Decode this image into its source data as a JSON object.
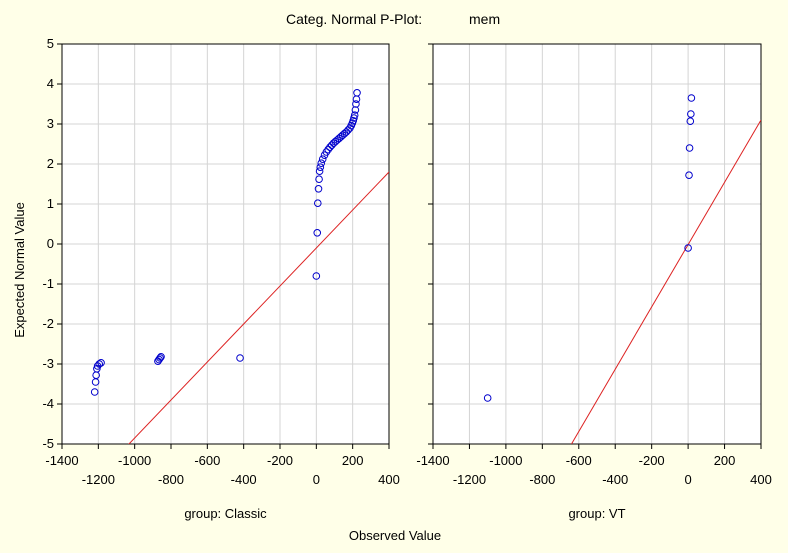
{
  "chart_data": {
    "type": "scatter",
    "title": "Categ. Normal P-Plot:",
    "variable": "mem",
    "xlabel": "Observed Value",
    "ylabel": "Expected Normal Value",
    "xlim": [
      -1400,
      400
    ],
    "ylim": [
      -5,
      5
    ],
    "x_tick_labels_upper": [
      "-1400",
      "-1000",
      "-600",
      "-200",
      "200"
    ],
    "x_tick_labels_lower": [
      "-1200",
      "-800",
      "-400",
      "0",
      "400"
    ],
    "y_tick_labels": [
      "5",
      "4",
      "3",
      "2",
      "1",
      "0",
      "-1",
      "-2",
      "-3",
      "-4",
      "-5"
    ],
    "grid": true,
    "point_color": "#0000cc",
    "line_color": "#dd2222",
    "panels": [
      {
        "name": "group: Classic",
        "line": [
          [
            -1200,
            -5.8
          ],
          [
            400,
            1.8
          ]
        ],
        "points": [
          [
            -1220,
            -3.7
          ],
          [
            -1215,
            -3.45
          ],
          [
            -1212,
            -3.28
          ],
          [
            -1208,
            -3.12
          ],
          [
            -1204,
            -3.05
          ],
          [
            -1195,
            -3.0
          ],
          [
            -1185,
            -2.97
          ],
          [
            -872,
            -2.93
          ],
          [
            -866,
            -2.89
          ],
          [
            -860,
            -2.85
          ],
          [
            -855,
            -2.82
          ],
          [
            -420,
            -2.85
          ],
          [
            0,
            -0.8
          ],
          [
            5,
            0.28
          ],
          [
            8,
            1.02
          ],
          [
            12,
            1.38
          ],
          [
            15,
            1.62
          ],
          [
            18,
            1.82
          ],
          [
            22,
            1.92
          ],
          [
            27,
            2.02
          ],
          [
            35,
            2.12
          ],
          [
            45,
            2.22
          ],
          [
            55,
            2.3
          ],
          [
            65,
            2.36
          ],
          [
            75,
            2.42
          ],
          [
            85,
            2.47
          ],
          [
            95,
            2.52
          ],
          [
            105,
            2.56
          ],
          [
            115,
            2.6
          ],
          [
            125,
            2.64
          ],
          [
            135,
            2.68
          ],
          [
            145,
            2.72
          ],
          [
            155,
            2.76
          ],
          [
            165,
            2.8
          ],
          [
            175,
            2.85
          ],
          [
            185,
            2.9
          ],
          [
            192,
            2.96
          ],
          [
            198,
            3.02
          ],
          [
            203,
            3.08
          ],
          [
            207,
            3.15
          ],
          [
            211,
            3.22
          ],
          [
            215,
            3.35
          ],
          [
            218,
            3.5
          ],
          [
            221,
            3.62
          ],
          [
            224,
            3.78
          ]
        ]
      },
      {
        "name": "group: VT",
        "line": [
          [
            -640,
            -5.0
          ],
          [
            400,
            3.1
          ]
        ],
        "points": [
          [
            -1100,
            -3.85
          ],
          [
            0,
            -0.1
          ],
          [
            5,
            1.72
          ],
          [
            8,
            2.4
          ],
          [
            12,
            3.07
          ],
          [
            15,
            3.25
          ],
          [
            18,
            3.65
          ]
        ]
      }
    ]
  }
}
